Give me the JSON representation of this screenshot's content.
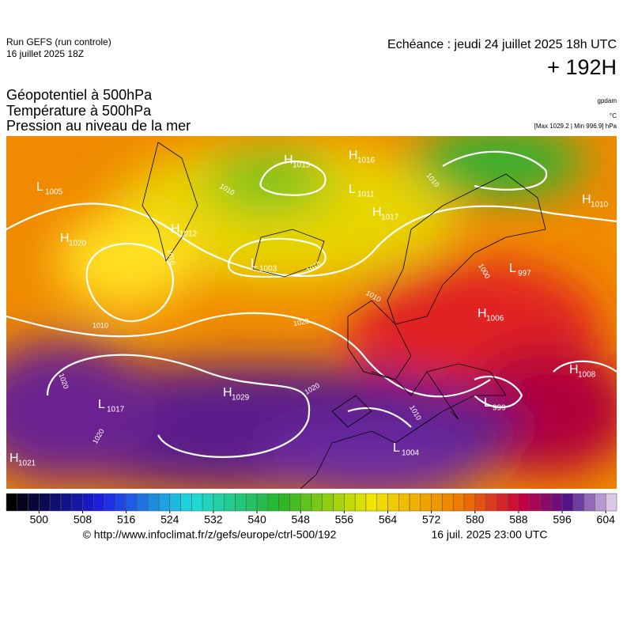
{
  "header": {
    "run": "Run GEFS (run controle)",
    "run_date": "16 juillet 2025 18Z",
    "valid": "Echéance : jeudi 24 juillet 2025 18h UTC",
    "lead": "+ 192H"
  },
  "titles": [
    "Géopotentiel à 500hPa",
    "Température à 500hPa",
    "Pression au niveau de la mer"
  ],
  "units": {
    "geopotential": "gpdam",
    "temperature": "°C",
    "pressure": "[Max 1029.2 | Min 996.9] hPa"
  },
  "pressure_centers": [
    {
      "kind": "L",
      "value": 1005
    },
    {
      "kind": "H",
      "value": 1020
    },
    {
      "kind": "H",
      "value": 1012
    },
    {
      "kind": "H",
      "value": 1015
    },
    {
      "kind": "H",
      "value": 1016
    },
    {
      "kind": "L",
      "value": 1011
    },
    {
      "kind": "H",
      "value": 1017
    },
    {
      "kind": "L",
      "value": 1003
    },
    {
      "kind": "L",
      "value": 997
    },
    {
      "kind": "H",
      "value": 1010
    },
    {
      "kind": "H",
      "value": 1006
    },
    {
      "kind": "H",
      "value": 1008
    },
    {
      "kind": "H",
      "value": 1029
    },
    {
      "kind": "L",
      "value": 1017
    },
    {
      "kind": "L",
      "value": 999
    },
    {
      "kind": "L",
      "value": 1004
    },
    {
      "kind": "H",
      "value": 1021
    }
  ],
  "isobar_labels": [
    1010,
    1010,
    1010,
    1020,
    1020,
    1020,
    1020,
    1010,
    1010,
    1000,
    1010,
    1010
  ],
  "colorbar": {
    "lim": [
      494,
      606
    ],
    "ticks": [
      500,
      508,
      516,
      524,
      532,
      540,
      548,
      556,
      564,
      572,
      580,
      588,
      596,
      604
    ]
  },
  "footer": {
    "source": "© http://www.infoclimat.fr/z/gefs/europe/ctrl-500/192",
    "issued": "16 juil. 2025 23:00 UTC"
  }
}
